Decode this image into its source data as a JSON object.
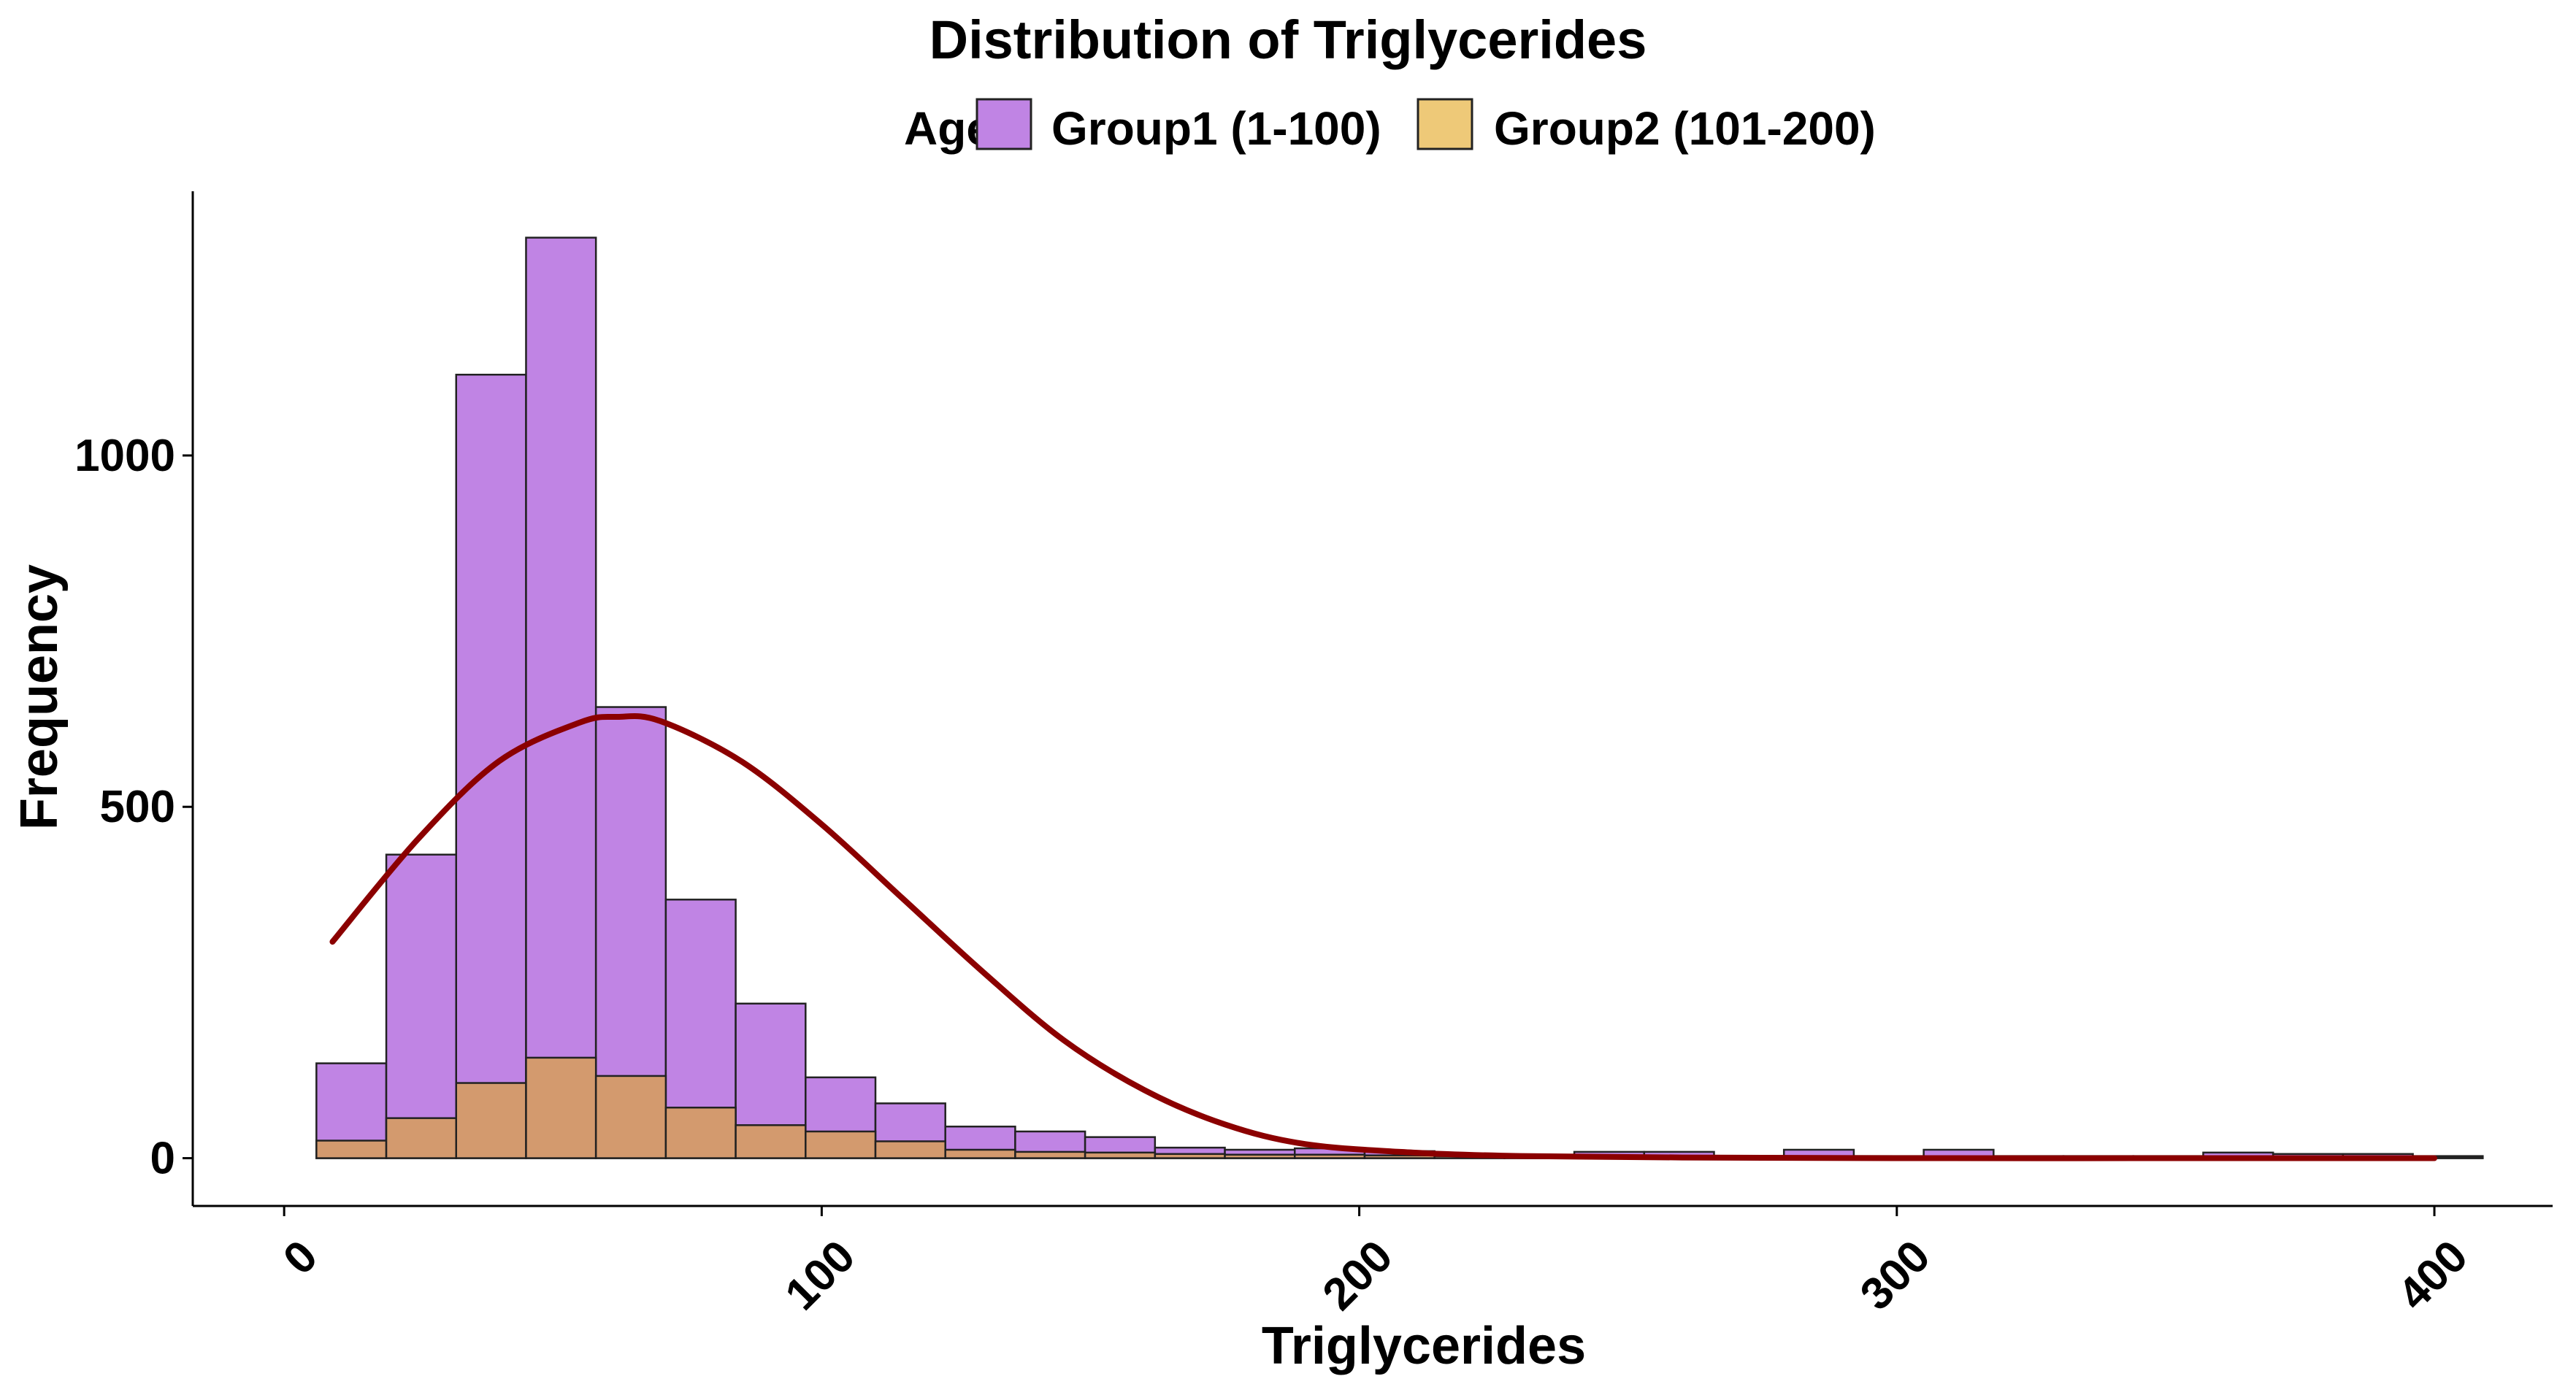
{
  "chart_data": {
    "type": "bar",
    "subtype": "overlaid-histogram-with-density-curve",
    "title": "Distribution of Triglycerides",
    "xlabel": "Triglycerides",
    "ylabel": "Frequency",
    "xlim": [
      -17,
      422
    ],
    "ylim": [
      -68,
      1376
    ],
    "x_ticks": [
      0,
      100,
      200,
      300,
      400
    ],
    "y_ticks": [
      0,
      500,
      1000
    ],
    "grid": false,
    "legend": {
      "title": "Age",
      "position": "top",
      "entries": [
        {
          "label": "Group1 (1-100)",
          "color": "#c084e4"
        },
        {
          "label": "Group2 (101-200)",
          "color": "#eec978"
        }
      ]
    },
    "bin_edges": [
      6,
      19,
      32,
      45,
      58,
      71,
      84,
      97,
      110,
      123,
      136,
      149,
      162,
      175,
      188,
      201,
      214,
      227,
      240,
      253,
      266,
      279,
      292,
      305,
      318,
      331,
      344,
      357,
      370,
      383,
      396,
      409
    ],
    "series": [
      {
        "name": "Group1 (1-100)",
        "color": "#c084e4",
        "values": [
          135,
          432,
          1115,
          1310,
          642,
          368,
          220,
          115,
          78,
          45,
          38,
          30,
          15,
          12,
          14,
          10,
          5,
          4,
          9,
          9,
          3,
          12,
          3,
          12,
          3,
          3,
          3,
          8,
          6,
          6,
          3
        ]
      },
      {
        "name": "Group2 (101-200)",
        "color": "#eec978",
        "values": [
          25,
          57,
          107,
          143,
          117,
          72,
          47,
          38,
          24,
          12,
          9,
          8,
          6,
          5,
          5,
          4,
          3,
          3,
          3,
          2,
          2,
          2,
          2,
          2,
          2,
          2,
          2,
          2,
          2,
          2,
          2
        ]
      }
    ],
    "overlap_color": "#d39a6e",
    "density_curve": {
      "color": "#8b0000",
      "x": [
        9,
        25,
        40,
        55,
        62,
        70,
        85,
        100,
        115,
        130,
        145,
        160,
        175,
        190,
        210,
        230,
        260,
        300,
        350,
        400
      ],
      "y": [
        308,
        455,
        565,
        620,
        628,
        622,
        565,
        475,
        370,
        265,
        168,
        97,
        48,
        20,
        8,
        3,
        1,
        0,
        0,
        0
      ]
    }
  }
}
